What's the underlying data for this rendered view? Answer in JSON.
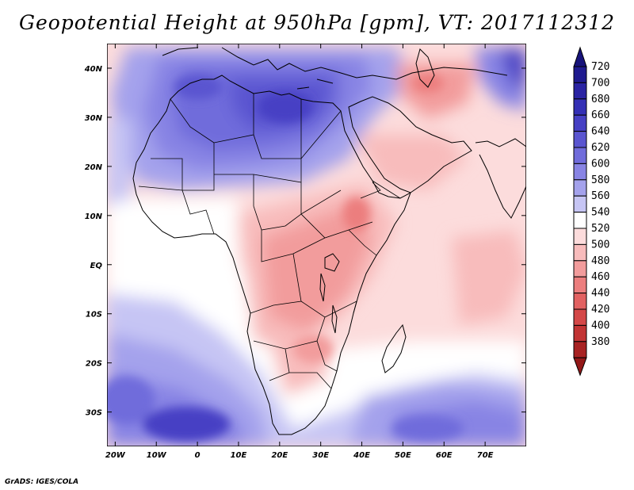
{
  "title": "Geopotential Height at 950hPa [gpm], VT: 2017112312",
  "credit": "GrADS: IGES/COLA",
  "map": {
    "variable": "Geopotential Height",
    "level": "950hPa",
    "units": "gpm",
    "valid_time": "2017112312",
    "lon_range": [
      -22,
      80
    ],
    "lat_range": [
      -37,
      45
    ]
  },
  "lat_ticks": [
    {
      "value": 40,
      "label": "40N"
    },
    {
      "value": 30,
      "label": "30N"
    },
    {
      "value": 20,
      "label": "20N"
    },
    {
      "value": 10,
      "label": "10N"
    },
    {
      "value": 0,
      "label": "EQ"
    },
    {
      "value": -10,
      "label": "10S"
    },
    {
      "value": -20,
      "label": "20S"
    },
    {
      "value": -30,
      "label": "30S"
    }
  ],
  "lon_ticks": [
    {
      "value": -20,
      "label": "20W"
    },
    {
      "value": -10,
      "label": "10W"
    },
    {
      "value": 0,
      "label": "0"
    },
    {
      "value": 10,
      "label": "10E"
    },
    {
      "value": 20,
      "label": "20E"
    },
    {
      "value": 30,
      "label": "30E"
    },
    {
      "value": 40,
      "label": "40E"
    },
    {
      "value": 50,
      "label": "50E"
    },
    {
      "value": 60,
      "label": "60E"
    },
    {
      "value": 70,
      "label": "70E"
    }
  ],
  "colorbar": {
    "levels": [
      {
        "value": 720,
        "label": "720",
        "color": "#1f1a8f"
      },
      {
        "value": 700,
        "label": "700",
        "color": "#2a23a3"
      },
      {
        "value": 680,
        "label": "680",
        "color": "#3430b5"
      },
      {
        "value": 660,
        "label": "660",
        "color": "#4640c4"
      },
      {
        "value": 640,
        "label": "640",
        "color": "#5a55d0"
      },
      {
        "value": 620,
        "label": "620",
        "color": "#706cdb"
      },
      {
        "value": 600,
        "label": "600",
        "color": "#8884e4"
      },
      {
        "value": 580,
        "label": "580",
        "color": "#a4a2ec"
      },
      {
        "value": 560,
        "label": "560",
        "color": "#c6c5f4"
      },
      {
        "value": 540,
        "label": "540",
        "color": "#ffffff"
      },
      {
        "value": 520,
        "label": "520",
        "color": "#fcdcdc"
      },
      {
        "value": 500,
        "label": "500",
        "color": "#f8bcbc"
      },
      {
        "value": 480,
        "label": "480",
        "color": "#f29c9c"
      },
      {
        "value": 460,
        "label": "460",
        "color": "#ec7e7e"
      },
      {
        "value": 440,
        "label": "440",
        "color": "#e26262"
      },
      {
        "value": 420,
        "label": "420",
        "color": "#d44848"
      },
      {
        "value": 400,
        "label": "400",
        "color": "#c23434"
      },
      {
        "value": 380,
        "label": "380",
        "color": "#a82222"
      }
    ],
    "max_arrow_color": "#17137a",
    "min_arrow_color": "#931818"
  }
}
